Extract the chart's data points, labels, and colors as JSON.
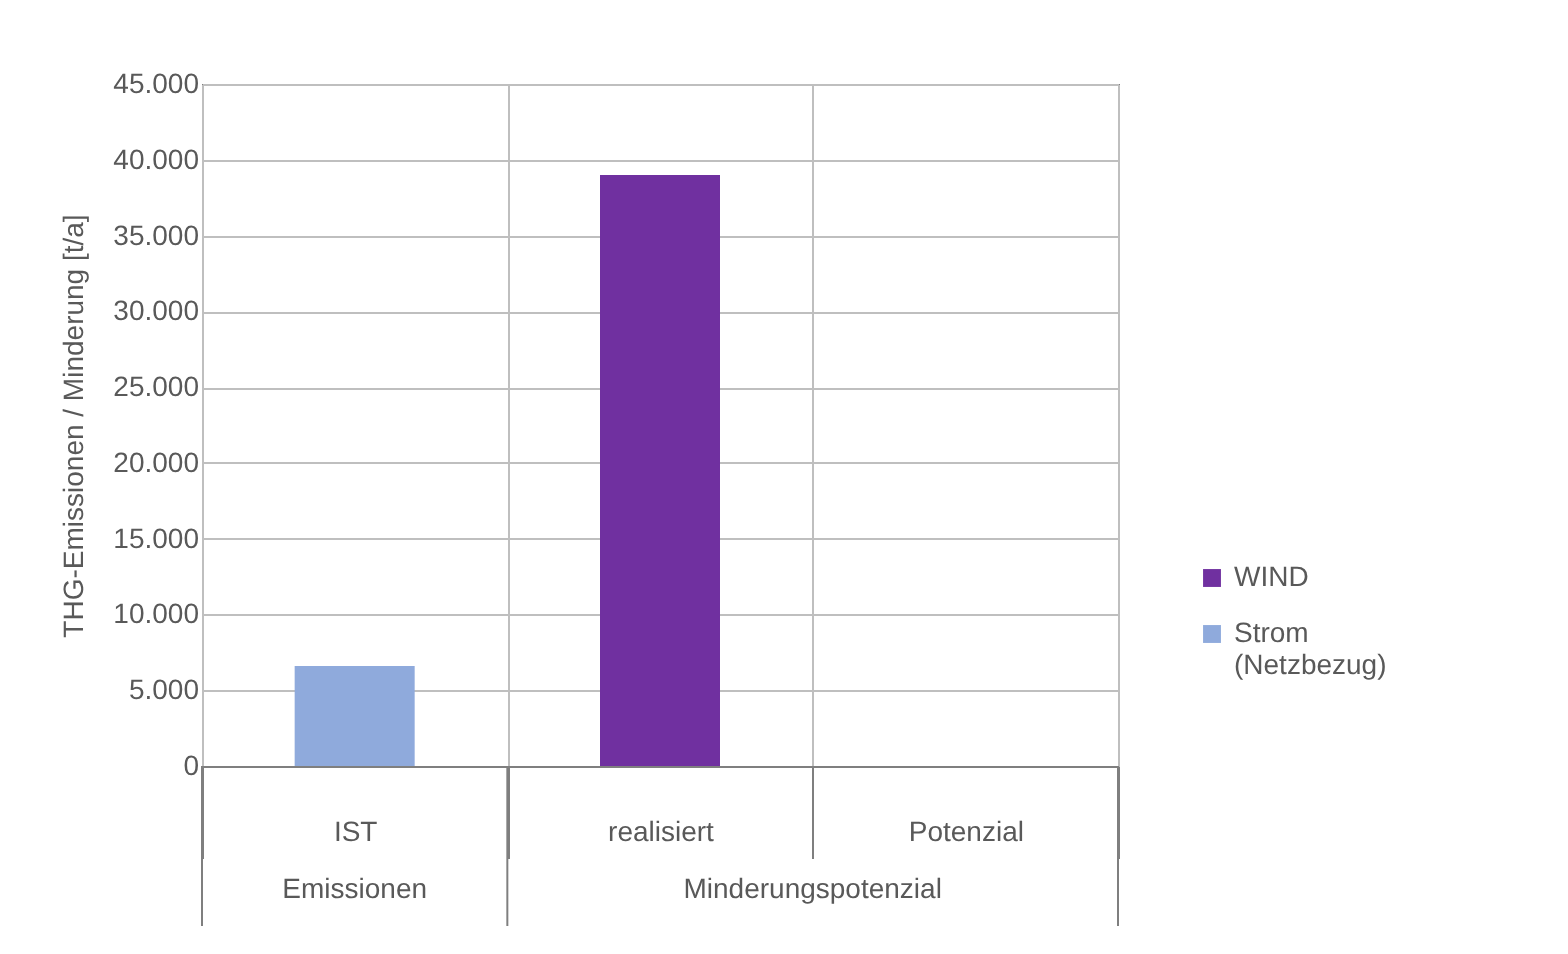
{
  "chart_data": {
    "type": "bar",
    "ylabel": "THG-Emissionen / Minderung [t/a]",
    "categories": [
      "IST",
      "realisiert",
      "Potenzial"
    ],
    "series": [
      {
        "name": "WIND",
        "color": "#7030a0",
        "values": [
          null,
          39000,
          null
        ]
      },
      {
        "name": "Strom (Netzbezug)",
        "color": "#8faadc",
        "values": [
          6600,
          null,
          null
        ]
      }
    ],
    "ylim": [
      0,
      45000
    ],
    "yticks": [
      {
        "value": 0,
        "label": "0"
      },
      {
        "value": 5000,
        "label": "5.000"
      },
      {
        "value": 10000,
        "label": "10.000"
      },
      {
        "value": 15000,
        "label": "15.000"
      },
      {
        "value": 20000,
        "label": "20.000"
      },
      {
        "value": 25000,
        "label": "25.000"
      },
      {
        "value": 30000,
        "label": "30.000"
      },
      {
        "value": 35000,
        "label": "35.000"
      },
      {
        "value": 40000,
        "label": "40.000"
      },
      {
        "value": 45000,
        "label": "45.000"
      }
    ],
    "grid": true,
    "legend": "right",
    "annotations": [
      "Emissionen",
      "Minderungspotenzial"
    ]
  }
}
